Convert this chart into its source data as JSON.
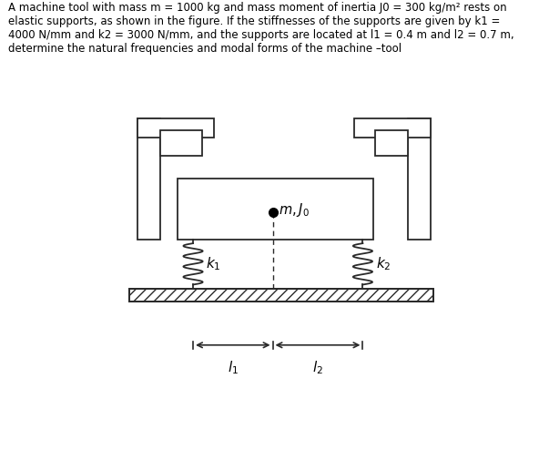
{
  "title_text": "A machine tool with mass m = 1000 kg and mass moment of inertia J0 = 300 kg/m² rests on\nelastic supports, as shown in the figure. If the stiffnesses of the supports are given by k1 =\n4000 N/mm and k2 = 3000 N/mm, and the supports are located at l1 = 0.4 m and l2 = 0.7 m,\ndetermine the natural frequencies and modal forms of the machine –tool",
  "bg_color": "#ffffff",
  "line_color": "#2a2a2a",
  "lw": 1.3
}
